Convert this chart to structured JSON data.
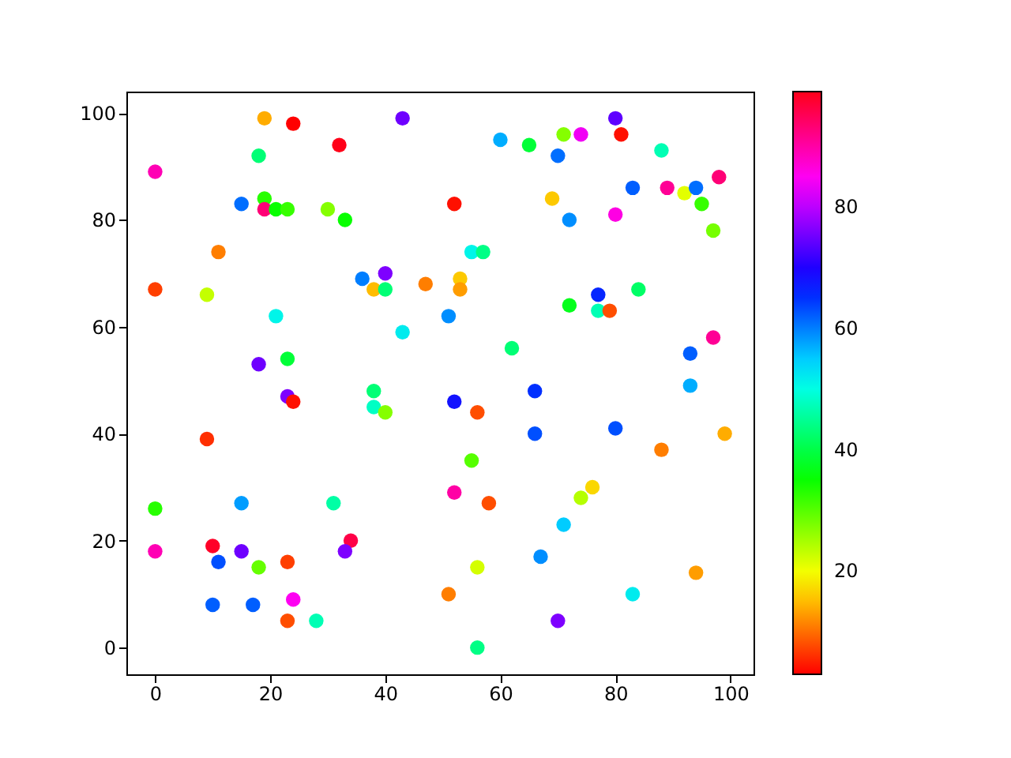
{
  "chart_data": {
    "type": "scatter",
    "marker": "circle",
    "grid": false,
    "xlim": [
      -5,
      104
    ],
    "ylim": [
      -5,
      104
    ],
    "xticks": [
      0,
      20,
      40,
      60,
      80,
      100
    ],
    "yticks": [
      0,
      20,
      40,
      60,
      80,
      100
    ],
    "clim": [
      3,
      99
    ],
    "cticks": [
      20,
      40,
      60,
      80
    ],
    "x": [
      19,
      24,
      43,
      32,
      0,
      18,
      15,
      19,
      19,
      21,
      23,
      30,
      33,
      11,
      0,
      9,
      36,
      40,
      38,
      40,
      21,
      43,
      18,
      23,
      60,
      65,
      70,
      71,
      74,
      80,
      81,
      88,
      98,
      83,
      89,
      92,
      94,
      95,
      97,
      52,
      69,
      72,
      80,
      55,
      57,
      47,
      53,
      53,
      77,
      84,
      72,
      77,
      79,
      51,
      62,
      97,
      93,
      93,
      66,
      23,
      24,
      38,
      38,
      40,
      9,
      0,
      15,
      31,
      0,
      10,
      11,
      15,
      18,
      23,
      34,
      33,
      10,
      17,
      24,
      23,
      28,
      52,
      56,
      66,
      80,
      99,
      88,
      55,
      52,
      58,
      76,
      74,
      71,
      67,
      56,
      94,
      51,
      83,
      70,
      56
    ],
    "values": [
      99,
      98,
      99,
      94,
      89,
      92,
      83,
      84,
      82,
      82,
      82,
      82,
      80,
      74,
      67,
      66,
      69,
      70,
      67,
      67,
      62,
      59,
      53,
      54,
      95,
      94,
      92,
      96,
      96,
      99,
      96,
      93,
      88,
      86,
      86,
      85,
      86,
      83,
      78,
      83,
      84,
      80,
      81,
      74,
      74,
      68,
      69,
      67,
      66,
      67,
      64,
      63,
      63,
      62,
      56,
      58,
      55,
      49,
      48,
      47,
      46,
      48,
      45,
      44,
      39,
      26,
      27,
      27,
      18,
      19,
      16,
      18,
      15,
      16,
      20,
      18,
      8,
      8,
      9,
      5,
      5,
      46,
      44,
      40,
      41,
      40,
      37,
      35,
      29,
      27,
      30,
      28,
      23,
      17,
      15,
      14,
      10,
      10,
      5,
      0
    ],
    "cvalues": [
      14,
      3,
      75,
      99,
      89,
      43,
      61,
      33,
      93,
      35,
      32,
      27,
      35,
      11,
      7,
      23,
      60,
      76,
      15,
      43,
      51,
      52,
      75,
      39,
      57,
      39,
      61,
      27,
      84,
      74,
      4,
      47,
      93,
      62,
      91,
      21,
      61,
      32,
      28,
      4,
      16,
      59,
      86,
      51,
      44,
      11,
      16,
      13,
      66,
      42,
      37,
      47,
      8,
      59,
      43,
      91,
      62,
      57,
      65,
      76,
      4,
      43,
      48,
      27,
      6,
      33,
      58,
      46,
      89,
      98,
      63,
      75,
      29,
      7,
      96,
      76,
      62,
      62,
      85,
      8,
      47,
      68,
      8,
      63,
      63,
      14,
      11,
      30,
      90,
      8,
      17,
      24,
      55,
      59,
      22,
      13,
      11,
      52,
      76,
      44
    ]
  }
}
